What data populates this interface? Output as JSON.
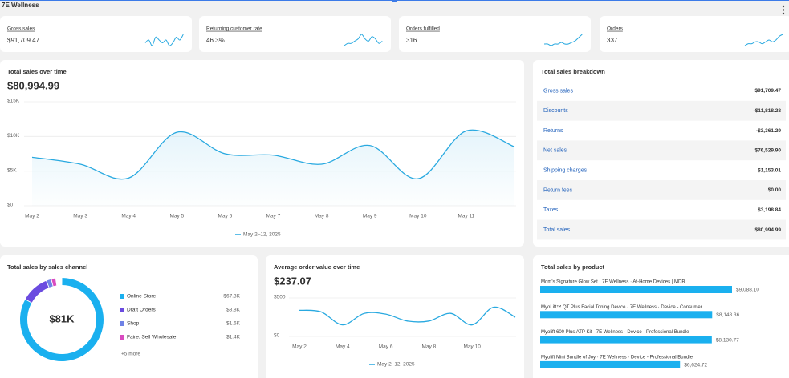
{
  "header": {
    "title": "7E Wellness"
  },
  "kpis": [
    {
      "label": "Gross sales",
      "value": "$91,709.47",
      "spark": [
        5,
        6,
        4,
        7,
        6,
        5,
        6,
        4,
        5,
        7,
        6,
        8
      ]
    },
    {
      "label": "Returning customer rate",
      "value": "46.3%",
      "spark": [
        3,
        4,
        4,
        5,
        6,
        8,
        6,
        5,
        7,
        6,
        4,
        5
      ]
    },
    {
      "label": "Orders fulfilled",
      "value": "316",
      "spark": [
        3,
        3,
        2,
        3,
        3,
        4,
        3,
        3,
        4,
        5,
        7,
        9
      ]
    },
    {
      "label": "Orders",
      "value": "337",
      "spark": [
        3,
        4,
        4,
        5,
        5,
        4,
        5,
        6,
        5,
        6,
        8,
        9
      ]
    }
  ],
  "sales_over_time": {
    "type": "line",
    "title": "Total sales over time",
    "total": "$80,994.99",
    "categories": [
      "May 2",
      "May 3",
      "May 4",
      "May 5",
      "May 6",
      "May 7",
      "May 8",
      "May 9",
      "May 10",
      "May 11",
      null
    ],
    "values": [
      7000,
      6000,
      4000,
      10600,
      7500,
      7300,
      6000,
      8700,
      3900,
      10800,
      8500
    ],
    "ylim": [
      0,
      15000
    ],
    "yticks": [
      {
        "value": 0,
        "label": "$0"
      },
      {
        "value": 5000,
        "label": "$5K"
      },
      {
        "value": 10000,
        "label": "$10K"
      },
      {
        "value": 15000,
        "label": "$15K"
      }
    ],
    "grid": true,
    "color": "#29a9e0",
    "legend": "May 2–12, 2025"
  },
  "breakdown": {
    "title": "Total sales breakdown",
    "rows": [
      [
        "Gross sales",
        "$91,709.47"
      ],
      [
        "Discounts",
        "-$11,818.28"
      ],
      [
        "Returns",
        "-$3,361.29"
      ],
      [
        "Net sales",
        "$76,529.90"
      ],
      [
        "Shipping charges",
        "$1,153.01"
      ],
      [
        "Return fees",
        "$0.00"
      ],
      [
        "Taxes",
        "$3,198.84"
      ],
      [
        "Total sales",
        "$80,994.99"
      ]
    ]
  },
  "sales_by_channel": {
    "type": "donut",
    "title": "Total sales by sales channel",
    "total": 81000,
    "total_label": "$81K",
    "categories": [
      "Online Store",
      "Draft Orders",
      "Shop",
      "Faire: Sell Wholesale"
    ],
    "values": [
      67300,
      8800,
      1600,
      1400
    ],
    "value_labels": [
      "$67.3K",
      "$8.8K",
      "$1.6K",
      "$1.4K"
    ],
    "colors": [
      "#1ab0ef",
      "#6b4be0",
      "#6f82e6",
      "#d94bc0"
    ],
    "more": "+5 more"
  },
  "avg_order_value": {
    "type": "line",
    "title": "Average order value over time",
    "total": "$237.07",
    "categories": [
      "May 2",
      null,
      "May 4",
      null,
      "May 6",
      null,
      "May 8",
      null,
      "May 10",
      null,
      null
    ],
    "values": [
      340,
      320,
      150,
      300,
      290,
      200,
      200,
      300,
      150,
      380,
      250
    ],
    "ylim": [
      0,
      500
    ],
    "yticks": [
      {
        "value": 0,
        "label": "$0"
      },
      {
        "value": 500,
        "label": "$500"
      }
    ],
    "grid": true,
    "color": "#29a9e0",
    "legend": "May 2–12, 2025"
  },
  "sales_by_product": {
    "type": "bar",
    "title": "Total sales by product",
    "categories": [
      "Mom's Signature Glow Set · 7E Wellness · At-Home Devices | MDB",
      "MyoLift™ QT Plus Facial Toning Device · 7E Wellness · Device - Consumer",
      "Myolift 600 Plus ATP Kit · 7E Wellness · Device - Professional Bundle",
      "Myolift Mini Bundle of Joy · 7E Wellness · Device - Professional Bundle"
    ],
    "values": [
      9088.1,
      8148.36,
      8130.77,
      6624.72
    ],
    "value_labels": [
      "$9,088.10",
      "$8,148.36",
      "$8,130.77",
      "$6,624.72"
    ],
    "color": "#1ab0ef"
  }
}
